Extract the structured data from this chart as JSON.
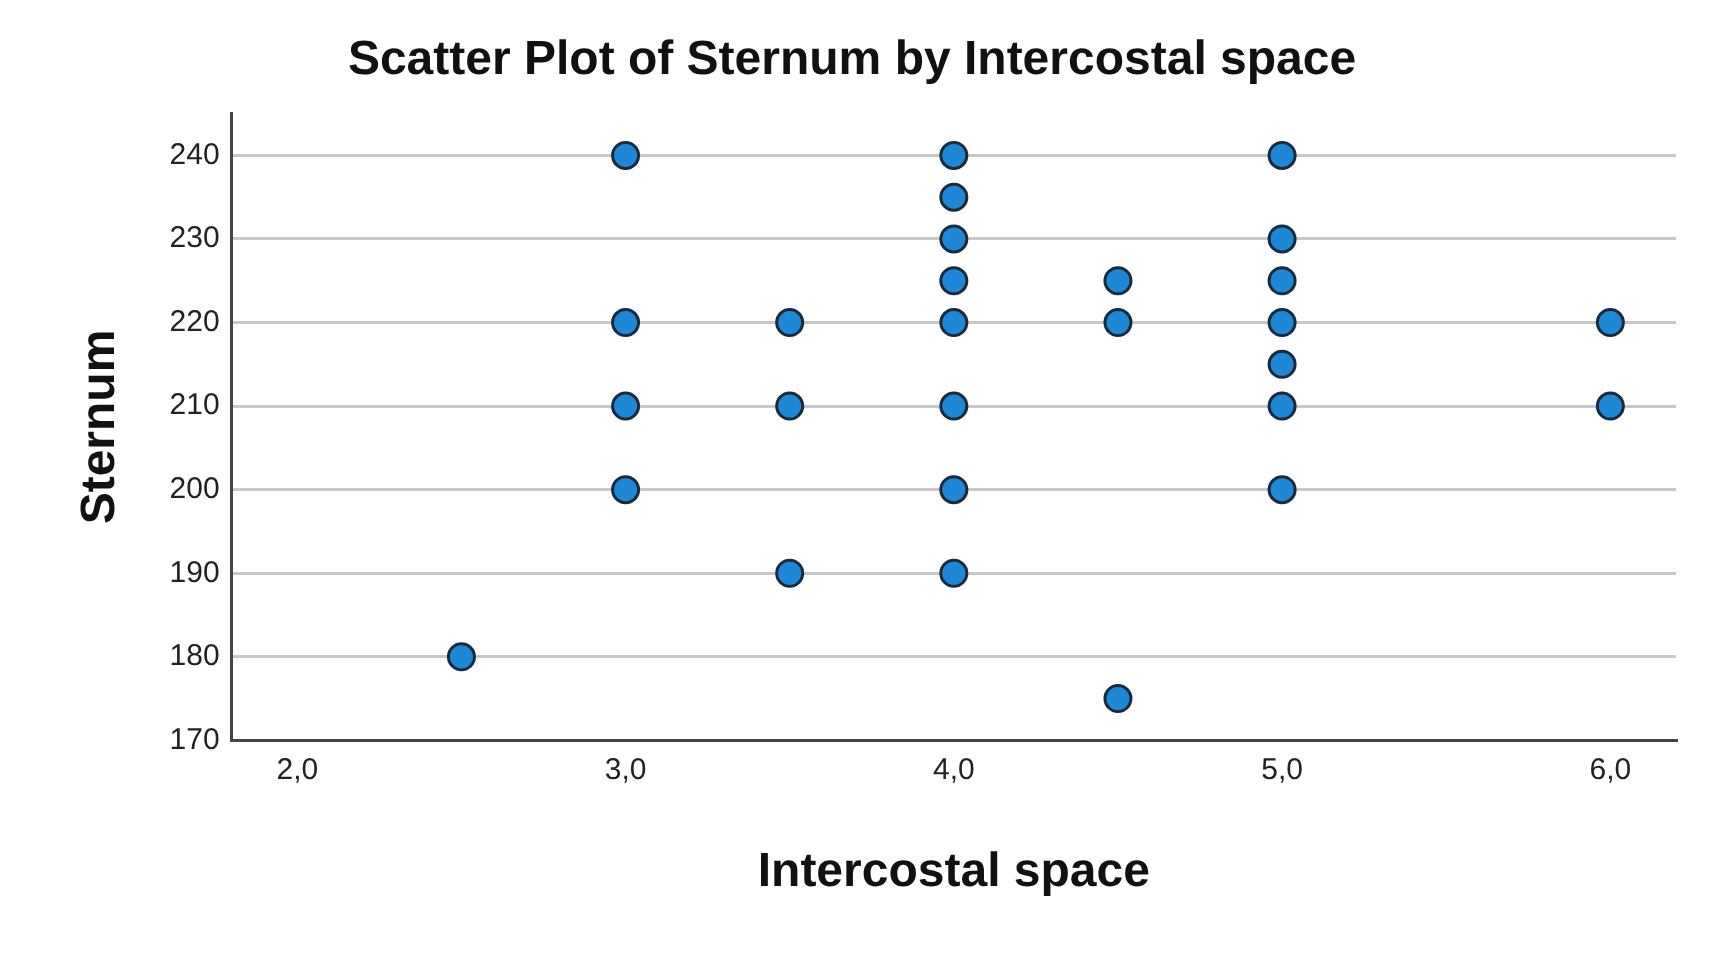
{
  "chart_data": {
    "type": "scatter",
    "title": "Scatter Plot of Sternum by Intercostal space",
    "xlabel": "Intercostal space",
    "ylabel": "Sternum",
    "x": [
      2.5,
      3,
      3,
      3,
      3,
      3.5,
      3.5,
      3.5,
      4,
      4,
      4,
      4,
      4,
      4,
      4,
      4,
      4.5,
      4.5,
      4.5,
      5,
      5,
      5,
      5,
      5,
      5,
      5,
      6,
      6
    ],
    "values": [
      180,
      240,
      220,
      210,
      200,
      220,
      210,
      190,
      240,
      235,
      230,
      225,
      220,
      210,
      200,
      190,
      225,
      220,
      175,
      240,
      230,
      225,
      220,
      215,
      210,
      200,
      220,
      210
    ],
    "color": "#1e88d8",
    "marker": "circle",
    "grid": "y",
    "legend": false,
    "xlim": [
      1.8,
      6.2
    ],
    "xticks": [
      {
        "value": 2,
        "label": "2,0"
      },
      {
        "value": 3,
        "label": "3,0"
      },
      {
        "value": 4,
        "label": "4,0"
      },
      {
        "value": 5,
        "label": "5,0"
      },
      {
        "value": 6,
        "label": "6,0"
      }
    ],
    "ylim": [
      170,
      245
    ],
    "yticks": [
      170,
      180,
      190,
      200,
      210,
      220,
      230,
      240
    ]
  }
}
